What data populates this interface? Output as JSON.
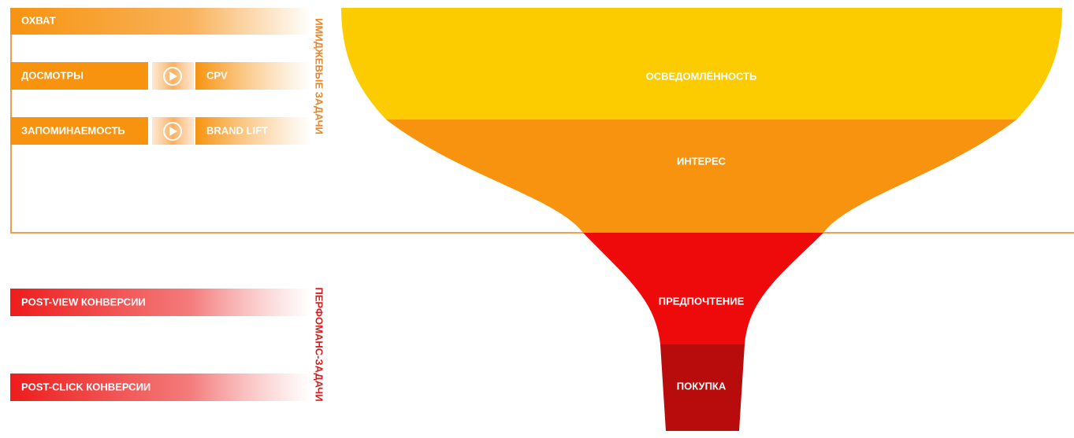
{
  "image_tasks": {
    "label": "ИМИДЖЕВЫЕ ЗАДАЧИ",
    "rows": [
      {
        "metric": "ОХВАТ"
      },
      {
        "metric": "ДОСМОТРЫ",
        "kpi": "CPV"
      },
      {
        "metric": "ЗАПОМИНАЕМОСТЬ",
        "kpi": "BRAND LIFT"
      }
    ]
  },
  "performance_tasks": {
    "label": "ПЕРФОМАНС-ЗАДАЧИ",
    "rows": [
      "POST-VIEW КОНВЕРСИИ",
      "POST-CLICK КОНВЕРСИИ"
    ]
  },
  "funnel": {
    "stages": [
      "ОСВЕДОМЛЁННОСТЬ",
      "ИНТЕРЕС",
      "ПРЕДПОЧТЕНИЕ",
      "ПОКУПКА"
    ]
  }
}
